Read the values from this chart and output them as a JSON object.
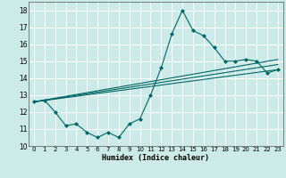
{
  "title": "",
  "xlabel": "Humidex (Indice chaleur)",
  "xlim": [
    -0.5,
    23.5
  ],
  "ylim": [
    10,
    18.5
  ],
  "yticks": [
    10,
    11,
    12,
    13,
    14,
    15,
    16,
    17,
    18
  ],
  "xticks": [
    0,
    1,
    2,
    3,
    4,
    5,
    6,
    7,
    8,
    9,
    10,
    11,
    12,
    13,
    14,
    15,
    16,
    17,
    18,
    19,
    20,
    21,
    22,
    23
  ],
  "bg_color": "#cceae7",
  "grid_color": "#b0d8d4",
  "line_color": "#006666",
  "line1_x": [
    0,
    1,
    2,
    3,
    4,
    5,
    6,
    7,
    8,
    9,
    10,
    11,
    12,
    13,
    14,
    15,
    16,
    17,
    18,
    19,
    20,
    21,
    22,
    23
  ],
  "line1_y": [
    12.6,
    12.7,
    12.0,
    11.2,
    11.3,
    10.8,
    10.5,
    10.8,
    10.5,
    11.3,
    11.6,
    13.0,
    14.6,
    16.6,
    18.0,
    16.8,
    16.5,
    15.8,
    15.0,
    15.0,
    15.1,
    15.0,
    14.3,
    14.5
  ],
  "line2_x": [
    0,
    23
  ],
  "line2_y": [
    12.6,
    15.1
  ],
  "line3_x": [
    0,
    23
  ],
  "line3_y": [
    12.6,
    14.8
  ],
  "line4_x": [
    0,
    23
  ],
  "line4_y": [
    12.6,
    14.5
  ]
}
